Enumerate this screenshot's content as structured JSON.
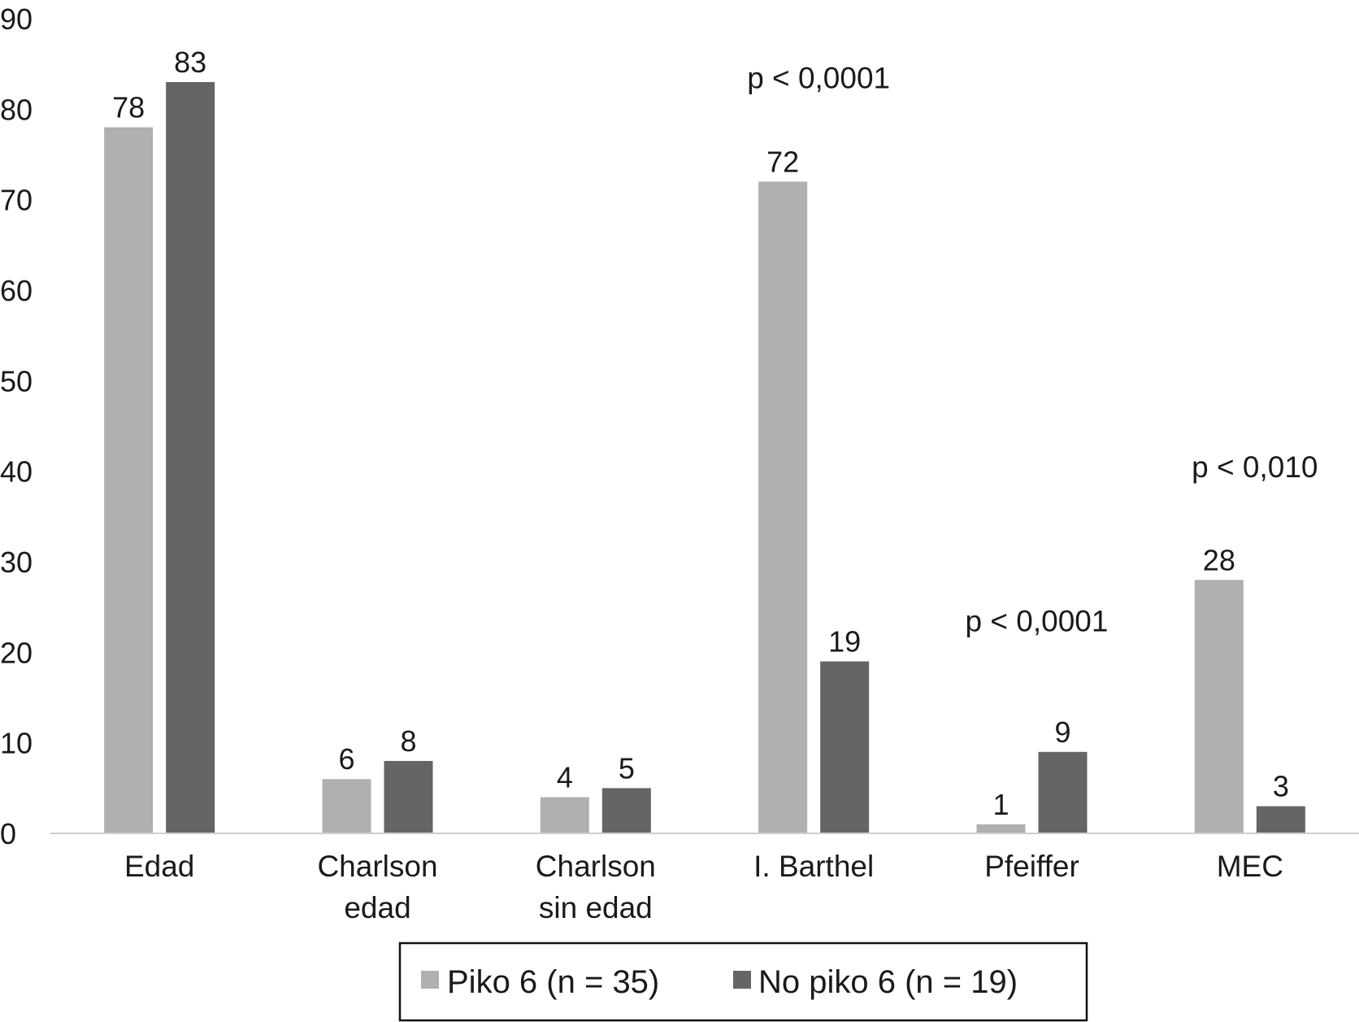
{
  "chart_data": {
    "type": "bar",
    "title": "",
    "xlabel": "",
    "ylabel": "",
    "ylim": [
      0,
      90
    ],
    "ytick_step": 10,
    "categories": [
      [
        "Edad"
      ],
      [
        "Charlson",
        "edad"
      ],
      [
        "Charlson",
        "sin edad"
      ],
      [
        "I. Barthel"
      ],
      [
        "Pfeiffer"
      ],
      [
        "MEC"
      ]
    ],
    "series": [
      {
        "name": "Piko 6 (n = 35)",
        "color": "#b0b0b0",
        "values": [
          78,
          6,
          4,
          72,
          1,
          28
        ]
      },
      {
        "name": "No piko 6 (n = 19)",
        "color": "#646567",
        "values": [
          83,
          8,
          5,
          19,
          9,
          3
        ]
      }
    ],
    "annotations": [
      {
        "text": "p < 0,0001",
        "category_index": 3,
        "y": 83.5
      },
      {
        "text": "p < 0,0001",
        "category_index": 4,
        "y": 23.5
      },
      {
        "text": "p < 0,010",
        "category_index": 5,
        "y": 40.5
      }
    ],
    "legend_position": "bottom",
    "grid": false
  }
}
